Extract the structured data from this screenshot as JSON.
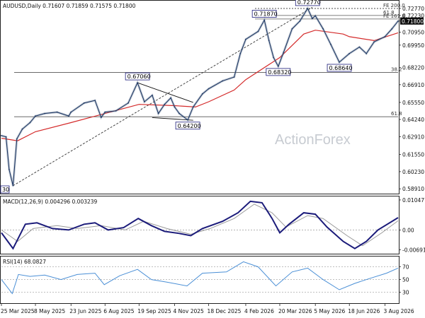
{
  "chart_data": {
    "type": "line",
    "instrument": "AUDUSD",
    "timeframe": "Daily",
    "ohlc_header": "AUDUSD,Daily  0.71607 0.71859 0.71575 0.71800",
    "watermark": "ActionForex",
    "last_price": 0.718,
    "price_axis": {
      "ticks": [
        0.7277,
        0.7223,
        0.718,
        0.7095,
        0.6995,
        0.6822,
        0.6691,
        0.6555,
        0.6424,
        0.6291,
        0.6155,
        0.6023,
        0.5891
      ],
      "labels": [
        "0.72770",
        "0.72230",
        "0.71800",
        "0.70950",
        "0.69950",
        "0.68220",
        "0.66910",
        "0.65550",
        "0.64240",
        "0.62910",
        "0.61550",
        "0.60230",
        "0.58910"
      ],
      "range": [
        0.5865,
        0.732
      ]
    },
    "date_axis": {
      "labels": [
        "25 Mar 2025",
        "8 May 2025",
        "23 Jun 2025",
        "6 Aug 2025",
        "19 Sep 2025",
        "4 Nov 2025",
        "18 Dec 2025",
        "4 Feb 2026",
        "20 Mar 2026",
        "5 May 2026",
        "18 Jun 2026",
        "3 Aug 2026"
      ],
      "start": "2025-03-25",
      "end": "2026-08-20"
    },
    "price_series": [
      {
        "x": "2025-03-25",
        "y": 0.63
      },
      {
        "x": "2025-03-31",
        "y": 0.629
      },
      {
        "x": "2025-04-04",
        "y": 0.604
      },
      {
        "x": "2025-04-09",
        "y": 0.5915
      },
      {
        "x": "2025-04-14",
        "y": 0.6275
      },
      {
        "x": "2025-04-21",
        "y": 0.635
      },
      {
        "x": "2025-05-01",
        "y": 0.64
      },
      {
        "x": "2025-05-08",
        "y": 0.645
      },
      {
        "x": "2025-05-20",
        "y": 0.647
      },
      {
        "x": "2025-06-05",
        "y": 0.648
      },
      {
        "x": "2025-06-20",
        "y": 0.645
      },
      {
        "x": "2025-06-23",
        "y": 0.648
      },
      {
        "x": "2025-07-10",
        "y": 0.655
      },
      {
        "x": "2025-07-24",
        "y": 0.657
      },
      {
        "x": "2025-08-01",
        "y": 0.644
      },
      {
        "x": "2025-08-06",
        "y": 0.648
      },
      {
        "x": "2025-08-20",
        "y": 0.649
      },
      {
        "x": "2025-09-05",
        "y": 0.655
      },
      {
        "x": "2025-09-17",
        "y": 0.6706
      },
      {
        "x": "2025-09-26",
        "y": 0.656
      },
      {
        "x": "2025-10-06",
        "y": 0.661
      },
      {
        "x": "2025-10-14",
        "y": 0.647
      },
      {
        "x": "2025-10-22",
        "y": 0.654
      },
      {
        "x": "2025-10-30",
        "y": 0.659
      },
      {
        "x": "2025-11-04",
        "y": 0.652
      },
      {
        "x": "2025-11-10",
        "y": 0.647
      },
      {
        "x": "2025-11-21",
        "y": 0.642
      },
      {
        "x": "2025-11-28",
        "y": 0.652
      },
      {
        "x": "2025-12-10",
        "y": 0.662
      },
      {
        "x": "2025-12-18",
        "y": 0.666
      },
      {
        "x": "2026-01-05",
        "y": 0.672
      },
      {
        "x": "2026-01-20",
        "y": 0.675
      },
      {
        "x": "2026-01-28",
        "y": 0.693
      },
      {
        "x": "2026-02-04",
        "y": 0.704
      },
      {
        "x": "2026-02-20",
        "y": 0.71
      },
      {
        "x": "2026-02-28",
        "y": 0.7187
      },
      {
        "x": "2026-03-06",
        "y": 0.703
      },
      {
        "x": "2026-03-12",
        "y": 0.69
      },
      {
        "x": "2026-03-18",
        "y": 0.6832
      },
      {
        "x": "2026-03-25",
        "y": 0.694
      },
      {
        "x": "2026-04-05",
        "y": 0.712
      },
      {
        "x": "2026-04-15",
        "y": 0.718
      },
      {
        "x": "2026-04-25",
        "y": 0.7277
      },
      {
        "x": "2026-05-01",
        "y": 0.72
      },
      {
        "x": "2026-05-05",
        "y": 0.722
      },
      {
        "x": "2026-05-15",
        "y": 0.712
      },
      {
        "x": "2026-05-25",
        "y": 0.7
      },
      {
        "x": "2026-06-05",
        "y": 0.6864
      },
      {
        "x": "2026-06-18",
        "y": 0.693
      },
      {
        "x": "2026-07-01",
        "y": 0.698
      },
      {
        "x": "2026-07-10",
        "y": 0.693
      },
      {
        "x": "2026-07-20",
        "y": 0.702
      },
      {
        "x": "2026-08-03",
        "y": 0.706
      },
      {
        "x": "2026-08-12",
        "y": 0.712
      },
      {
        "x": "2026-08-20",
        "y": 0.718
      }
    ],
    "moving_average": [
      {
        "x": "2025-03-25",
        "y": 0.628
      },
      {
        "x": "2025-04-15",
        "y": 0.626
      },
      {
        "x": "2025-05-08",
        "y": 0.633
      },
      {
        "x": "2025-06-23",
        "y": 0.64
      },
      {
        "x": "2025-08-06",
        "y": 0.647
      },
      {
        "x": "2025-09-19",
        "y": 0.654
      },
      {
        "x": "2025-11-04",
        "y": 0.653
      },
      {
        "x": "2025-12-01",
        "y": 0.652
      },
      {
        "x": "2025-12-18",
        "y": 0.656
      },
      {
        "x": "2026-01-20",
        "y": 0.665
      },
      {
        "x": "2026-02-04",
        "y": 0.673
      },
      {
        "x": "2026-03-20",
        "y": 0.69
      },
      {
        "x": "2026-04-20",
        "y": 0.708
      },
      {
        "x": "2026-05-05",
        "y": 0.711
      },
      {
        "x": "2026-06-10",
        "y": 0.708
      },
      {
        "x": "2026-06-18",
        "y": 0.706
      },
      {
        "x": "2026-07-20",
        "y": 0.703
      },
      {
        "x": "2026-08-20",
        "y": 0.709
      }
    ],
    "callouts": [
      {
        "label": "0.72770",
        "x": "2026-04-25",
        "y": 0.7277
      },
      {
        "label": "0.71870",
        "x": "2026-02-28",
        "y": 0.7187
      },
      {
        "label": "0.68320",
        "x": "2026-03-18",
        "y": 0.6832
      },
      {
        "label": "0.68640",
        "x": "2026-06-05",
        "y": 0.6864
      },
      {
        "label": "0.67060",
        "x": "2025-09-17",
        "y": 0.6706
      },
      {
        "label": "0.64200",
        "x": "2025-11-21",
        "y": 0.642
      }
    ],
    "fib_levels": [
      {
        "label": "FE 200.0",
        "y": 0.7277
      },
      {
        "label": "FE 161.8",
        "y": 0.7196
      },
      {
        "label": "61.8",
        "y": 0.7223
      },
      {
        "label": "38.2",
        "y": 0.6785
      },
      {
        "label": "61.8",
        "y": 0.6445
      }
    ],
    "bottom_left_tag": "30",
    "macd": {
      "title": "MACD(12,26,9) 0.004296 0.003239",
      "tick_labels": [
        "0.010477",
        "0.00",
        "-0.006911"
      ],
      "range": [
        -0.0078,
        0.0112
      ],
      "macd_series": [
        {
          "x": "2025-03-25",
          "y": -0.001
        },
        {
          "x": "2025-04-09",
          "y": -0.0065
        },
        {
          "x": "2025-04-25",
          "y": 0.002
        },
        {
          "x": "2025-05-10",
          "y": 0.0025
        },
        {
          "x": "2025-05-30",
          "y": 0.0005
        },
        {
          "x": "2025-06-20",
          "y": 0.0
        },
        {
          "x": "2025-07-10",
          "y": 0.002
        },
        {
          "x": "2025-07-24",
          "y": 0.0025
        },
        {
          "x": "2025-08-10",
          "y": 0.0
        },
        {
          "x": "2025-08-30",
          "y": 0.0008
        },
        {
          "x": "2025-09-18",
          "y": 0.004
        },
        {
          "x": "2025-10-05",
          "y": 0.0015
        },
        {
          "x": "2025-10-22",
          "y": -0.0005
        },
        {
          "x": "2025-11-10",
          "y": -0.0012
        },
        {
          "x": "2025-11-25",
          "y": -0.002
        },
        {
          "x": "2025-12-10",
          "y": 0.0005
        },
        {
          "x": "2026-01-05",
          "y": 0.003
        },
        {
          "x": "2026-01-25",
          "y": 0.006
        },
        {
          "x": "2026-02-10",
          "y": 0.01
        },
        {
          "x": "2026-02-25",
          "y": 0.0095
        },
        {
          "x": "2026-03-10",
          "y": 0.004
        },
        {
          "x": "2026-03-20",
          "y": -0.001
        },
        {
          "x": "2026-04-01",
          "y": 0.002
        },
        {
          "x": "2026-04-20",
          "y": 0.006
        },
        {
          "x": "2026-05-05",
          "y": 0.0055
        },
        {
          "x": "2026-05-20",
          "y": 0.001
        },
        {
          "x": "2026-06-10",
          "y": -0.004
        },
        {
          "x": "2026-06-25",
          "y": -0.0065
        },
        {
          "x": "2026-07-10",
          "y": -0.004
        },
        {
          "x": "2026-07-25",
          "y": 0.0
        },
        {
          "x": "2026-08-20",
          "y": 0.0043
        }
      ],
      "signal_series": [
        {
          "x": "2025-03-25",
          "y": 0.0
        },
        {
          "x": "2025-04-15",
          "y": -0.004
        },
        {
          "x": "2025-05-05",
          "y": 0.0005
        },
        {
          "x": "2025-06-05",
          "y": 0.0015
        },
        {
          "x": "2025-07-01",
          "y": 0.0005
        },
        {
          "x": "2025-08-01",
          "y": 0.0015
        },
        {
          "x": "2025-09-01",
          "y": 0.0
        },
        {
          "x": "2025-09-25",
          "y": 0.003
        },
        {
          "x": "2025-10-25",
          "y": 0.0005
        },
        {
          "x": "2025-11-25",
          "y": -0.0015
        },
        {
          "x": "2025-12-20",
          "y": 0.0005
        },
        {
          "x": "2026-01-20",
          "y": 0.004
        },
        {
          "x": "2026-02-15",
          "y": 0.009
        },
        {
          "x": "2026-03-10",
          "y": 0.006
        },
        {
          "x": "2026-03-28",
          "y": 0.001
        },
        {
          "x": "2026-04-25",
          "y": 0.005
        },
        {
          "x": "2026-05-15",
          "y": 0.004
        },
        {
          "x": "2026-06-15",
          "y": -0.002
        },
        {
          "x": "2026-07-05",
          "y": -0.0055
        },
        {
          "x": "2026-07-30",
          "y": -0.001
        },
        {
          "x": "2026-08-20",
          "y": 0.0032
        }
      ]
    },
    "rsi": {
      "title": "RSI(14) 68.0827",
      "tick_labels": [
        "70",
        "50",
        "30"
      ],
      "levels": [
        70,
        50,
        30
      ],
      "range": [
        14,
        84
      ],
      "series": [
        {
          "x": "2025-03-25",
          "y": 50
        },
        {
          "x": "2025-04-08",
          "y": 28
        },
        {
          "x": "2025-04-16",
          "y": 58
        },
        {
          "x": "2025-05-01",
          "y": 55
        },
        {
          "x": "2025-05-20",
          "y": 57
        },
        {
          "x": "2025-06-10",
          "y": 50
        },
        {
          "x": "2025-07-01",
          "y": 58
        },
        {
          "x": "2025-07-24",
          "y": 60
        },
        {
          "x": "2025-08-05",
          "y": 42
        },
        {
          "x": "2025-08-25",
          "y": 56
        },
        {
          "x": "2025-09-17",
          "y": 66
        },
        {
          "x": "2025-10-05",
          "y": 50
        },
        {
          "x": "2025-10-25",
          "y": 46
        },
        {
          "x": "2025-11-20",
          "y": 40
        },
        {
          "x": "2025-12-10",
          "y": 60
        },
        {
          "x": "2026-01-10",
          "y": 62
        },
        {
          "x": "2026-02-01",
          "y": 78
        },
        {
          "x": "2026-02-20",
          "y": 70
        },
        {
          "x": "2026-03-15",
          "y": 40
        },
        {
          "x": "2026-04-05",
          "y": 62
        },
        {
          "x": "2026-04-25",
          "y": 68
        },
        {
          "x": "2026-05-15",
          "y": 50
        },
        {
          "x": "2026-06-05",
          "y": 34
        },
        {
          "x": "2026-06-25",
          "y": 44
        },
        {
          "x": "2026-07-15",
          "y": 52
        },
        {
          "x": "2026-08-05",
          "y": 60
        },
        {
          "x": "2026-08-20",
          "y": 68
        }
      ]
    },
    "colors": {
      "price": "#1f3864",
      "moving_average": "#d42a2a",
      "macd": "#1b1b7a",
      "signal": "#9a9a9a",
      "rsi": "#4a8fd6",
      "price_tag": "#0b0b0b",
      "grid_dash": "#555555",
      "callout_border": "#1b1b7a"
    }
  }
}
